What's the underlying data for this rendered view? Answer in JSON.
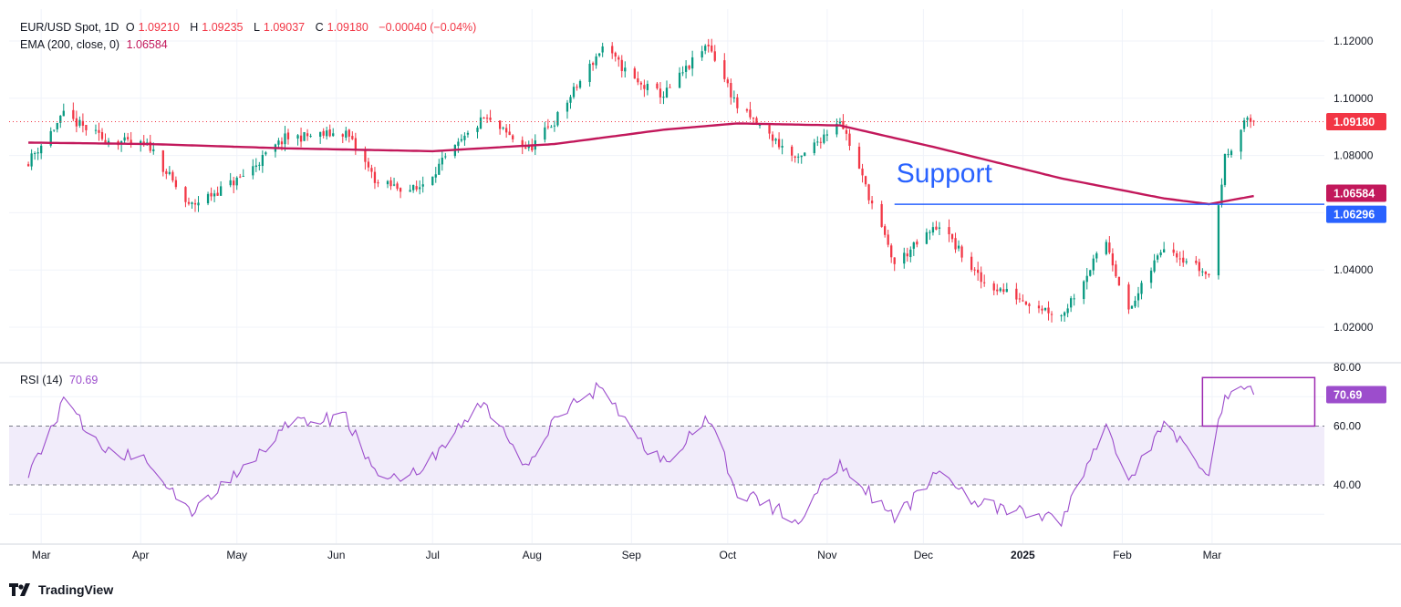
{
  "header": {
    "symbol_line": {
      "symbol": "EUR/USD Spot, 1D",
      "o_label": "O",
      "open": "1.09210",
      "h_label": "H",
      "high": "1.09235",
      "l_label": "L",
      "low": "1.09037",
      "c_label": "C",
      "close": "1.09180",
      "change": "−0.00040 (−0.04%)"
    },
    "ema_line": {
      "label": "EMA (200, close, 0)",
      "value": "1.06584"
    },
    "rsi_line": {
      "label": "RSI (14)",
      "value": "70.69"
    }
  },
  "annotation": {
    "support_text": "Support"
  },
  "price_axis": {
    "ticks": [
      "1.12000",
      "1.10000",
      "1.08000",
      "1.04000",
      "1.02000"
    ],
    "current_price_tag": "1.09180",
    "ema_tag": "1.06584",
    "support_tag": "1.06296"
  },
  "rsi_axis": {
    "ticks": [
      "80.00",
      "60.00",
      "40.00"
    ],
    "current_tag": "70.69"
  },
  "time_axis": {
    "labels": [
      "Mar",
      "Apr",
      "May",
      "Jun",
      "Jul",
      "Aug",
      "Sep",
      "Oct",
      "Nov",
      "Dec",
      "2025",
      "Feb",
      "Mar"
    ]
  },
  "brand": {
    "name": "TradingView"
  },
  "colors": {
    "up": "#089981",
    "down": "#f23645",
    "ema": "#c2185b",
    "support": "#2962ff",
    "rsi": "#9c4dcc",
    "rsi_band": "#f1ecfa",
    "grid": "#f0f3fa"
  },
  "chart_data": [
    {
      "type": "candlestick",
      "title": "EUR/USD Spot, 1D",
      "x_labels": [
        "Mar",
        "Apr",
        "May",
        "Jun",
        "Jul",
        "Aug",
        "Sep",
        "Oct",
        "Nov",
        "Dec",
        "2025",
        "Feb",
        "Mar"
      ],
      "ylim": [
        1.01,
        1.125
      ],
      "close_anchors": [
        {
          "date": "2024-02-26",
          "close": 1.078
        },
        {
          "date": "2024-03-08",
          "close": 1.094
        },
        {
          "date": "2024-03-20",
          "close": 1.086
        },
        {
          "date": "2024-04-04",
          "close": 1.083
        },
        {
          "date": "2024-04-16",
          "close": 1.062
        },
        {
          "date": "2024-05-02",
          "close": 1.072
        },
        {
          "date": "2024-05-16",
          "close": 1.086
        },
        {
          "date": "2024-06-04",
          "close": 1.088
        },
        {
          "date": "2024-06-14",
          "close": 1.07
        },
        {
          "date": "2024-06-26",
          "close": 1.068
        },
        {
          "date": "2024-07-17",
          "close": 1.093
        },
        {
          "date": "2024-07-31",
          "close": 1.082
        },
        {
          "date": "2024-08-08",
          "close": 1.092
        },
        {
          "date": "2024-08-23",
          "close": 1.118
        },
        {
          "date": "2024-09-03",
          "close": 1.105
        },
        {
          "date": "2024-09-11",
          "close": 1.101
        },
        {
          "date": "2024-09-25",
          "close": 1.119
        },
        {
          "date": "2024-10-04",
          "close": 1.097
        },
        {
          "date": "2024-10-23",
          "close": 1.078
        },
        {
          "date": "2024-11-05",
          "close": 1.093
        },
        {
          "date": "2024-11-22",
          "close": 1.042
        },
        {
          "date": "2024-12-06",
          "close": 1.056
        },
        {
          "date": "2024-12-19",
          "close": 1.036
        },
        {
          "date": "2025-01-13",
          "close": 1.024
        },
        {
          "date": "2025-01-27",
          "close": 1.05
        },
        {
          "date": "2025-02-03",
          "close": 1.025
        },
        {
          "date": "2025-02-14",
          "close": 1.049
        },
        {
          "date": "2025-02-28",
          "close": 1.038
        },
        {
          "date": "2025-03-05",
          "close": 1.079
        },
        {
          "date": "2025-03-11",
          "close": 1.092
        },
        {
          "date": "2025-03-14",
          "close": 1.0918
        }
      ],
      "last_bar": {
        "open": 1.0921,
        "high": 1.09235,
        "low": 1.09037,
        "close": 1.0918
      },
      "overlays": [
        {
          "name": "EMA (200, close, 0)",
          "type": "line",
          "current": 1.06584,
          "values": [
            {
              "date": "2024-02-26",
              "value": 1.0845
            },
            {
              "date": "2024-04-04",
              "value": 1.084
            },
            {
              "date": "2024-05-16",
              "value": 1.0825
            },
            {
              "date": "2024-07-01",
              "value": 1.0815
            },
            {
              "date": "2024-08-08",
              "value": 1.084
            },
            {
              "date": "2024-09-11",
              "value": 1.089
            },
            {
              "date": "2024-10-04",
              "value": 1.0912
            },
            {
              "date": "2024-11-05",
              "value": 1.0905
            },
            {
              "date": "2024-12-06",
              "value": 1.0825
            },
            {
              "date": "2025-01-13",
              "value": 1.072
            },
            {
              "date": "2025-02-14",
              "value": 1.065
            },
            {
              "date": "2025-02-28",
              "value": 1.063
            },
            {
              "date": "2025-03-14",
              "value": 1.06584
            }
          ]
        },
        {
          "name": "Support",
          "type": "hline",
          "value": 1.06296,
          "from": "2024-11-22"
        }
      ]
    },
    {
      "type": "line",
      "title": "RSI (14)",
      "ylim": [
        20,
        80
      ],
      "band": [
        40,
        60
      ],
      "current": 70.69,
      "values": [
        {
          "date": "2024-02-26",
          "value": 43
        },
        {
          "date": "2024-03-08",
          "value": 68
        },
        {
          "date": "2024-03-20",
          "value": 52
        },
        {
          "date": "2024-04-04",
          "value": 48
        },
        {
          "date": "2024-04-16",
          "value": 30
        },
        {
          "date": "2024-05-02",
          "value": 45
        },
        {
          "date": "2024-05-16",
          "value": 60
        },
        {
          "date": "2024-06-04",
          "value": 63
        },
        {
          "date": "2024-06-14",
          "value": 42
        },
        {
          "date": "2024-06-26",
          "value": 44
        },
        {
          "date": "2024-07-17",
          "value": 68
        },
        {
          "date": "2024-07-31",
          "value": 45
        },
        {
          "date": "2024-08-08",
          "value": 63
        },
        {
          "date": "2024-08-23",
          "value": 74
        },
        {
          "date": "2024-09-03",
          "value": 55
        },
        {
          "date": "2024-09-11",
          "value": 48
        },
        {
          "date": "2024-09-25",
          "value": 62
        },
        {
          "date": "2024-10-04",
          "value": 38
        },
        {
          "date": "2024-10-23",
          "value": 28
        },
        {
          "date": "2024-11-05",
          "value": 48
        },
        {
          "date": "2024-11-22",
          "value": 28
        },
        {
          "date": "2024-12-06",
          "value": 45
        },
        {
          "date": "2024-12-19",
          "value": 33
        },
        {
          "date": "2025-01-13",
          "value": 28
        },
        {
          "date": "2025-01-27",
          "value": 60
        },
        {
          "date": "2025-02-03",
          "value": 42
        },
        {
          "date": "2025-02-14",
          "value": 60
        },
        {
          "date": "2025-02-28",
          "value": 45
        },
        {
          "date": "2025-03-05",
          "value": 70
        },
        {
          "date": "2025-03-11",
          "value": 74
        },
        {
          "date": "2025-03-14",
          "value": 70.69
        }
      ]
    }
  ]
}
